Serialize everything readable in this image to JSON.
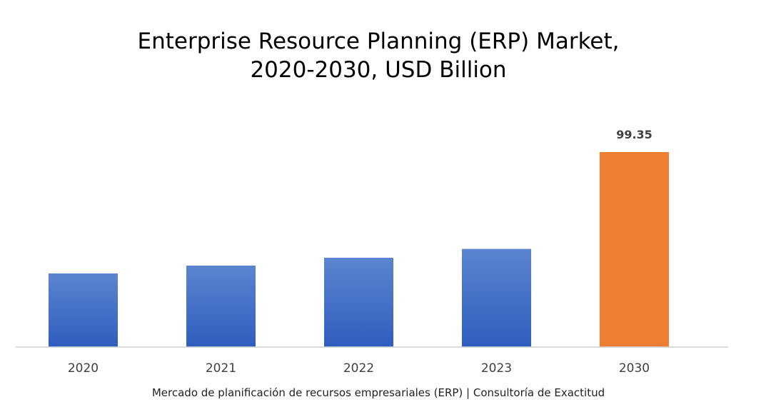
{
  "chart_data": {
    "type": "bar",
    "title_lines": [
      "Enterprise Resource Planning (ERP) Market,",
      "2020-2030, USD Billion"
    ],
    "categories": [
      "2020",
      "2021",
      "2022",
      "2023",
      "2030"
    ],
    "values": [
      37.5,
      41.5,
      45.5,
      50,
      99.35
    ],
    "data_labels": [
      "",
      "",
      "",
      "",
      "99.35"
    ],
    "colors": [
      "#4472C4",
      "#4472C4",
      "#4472C4",
      "#4472C4",
      "#ED7D31"
    ],
    "ylim": [
      0,
      100
    ],
    "grid": false,
    "legend": "none"
  },
  "caption": "Mercado de planificación de recursos empresariales (ERP) | Consultoría de Exactitud"
}
